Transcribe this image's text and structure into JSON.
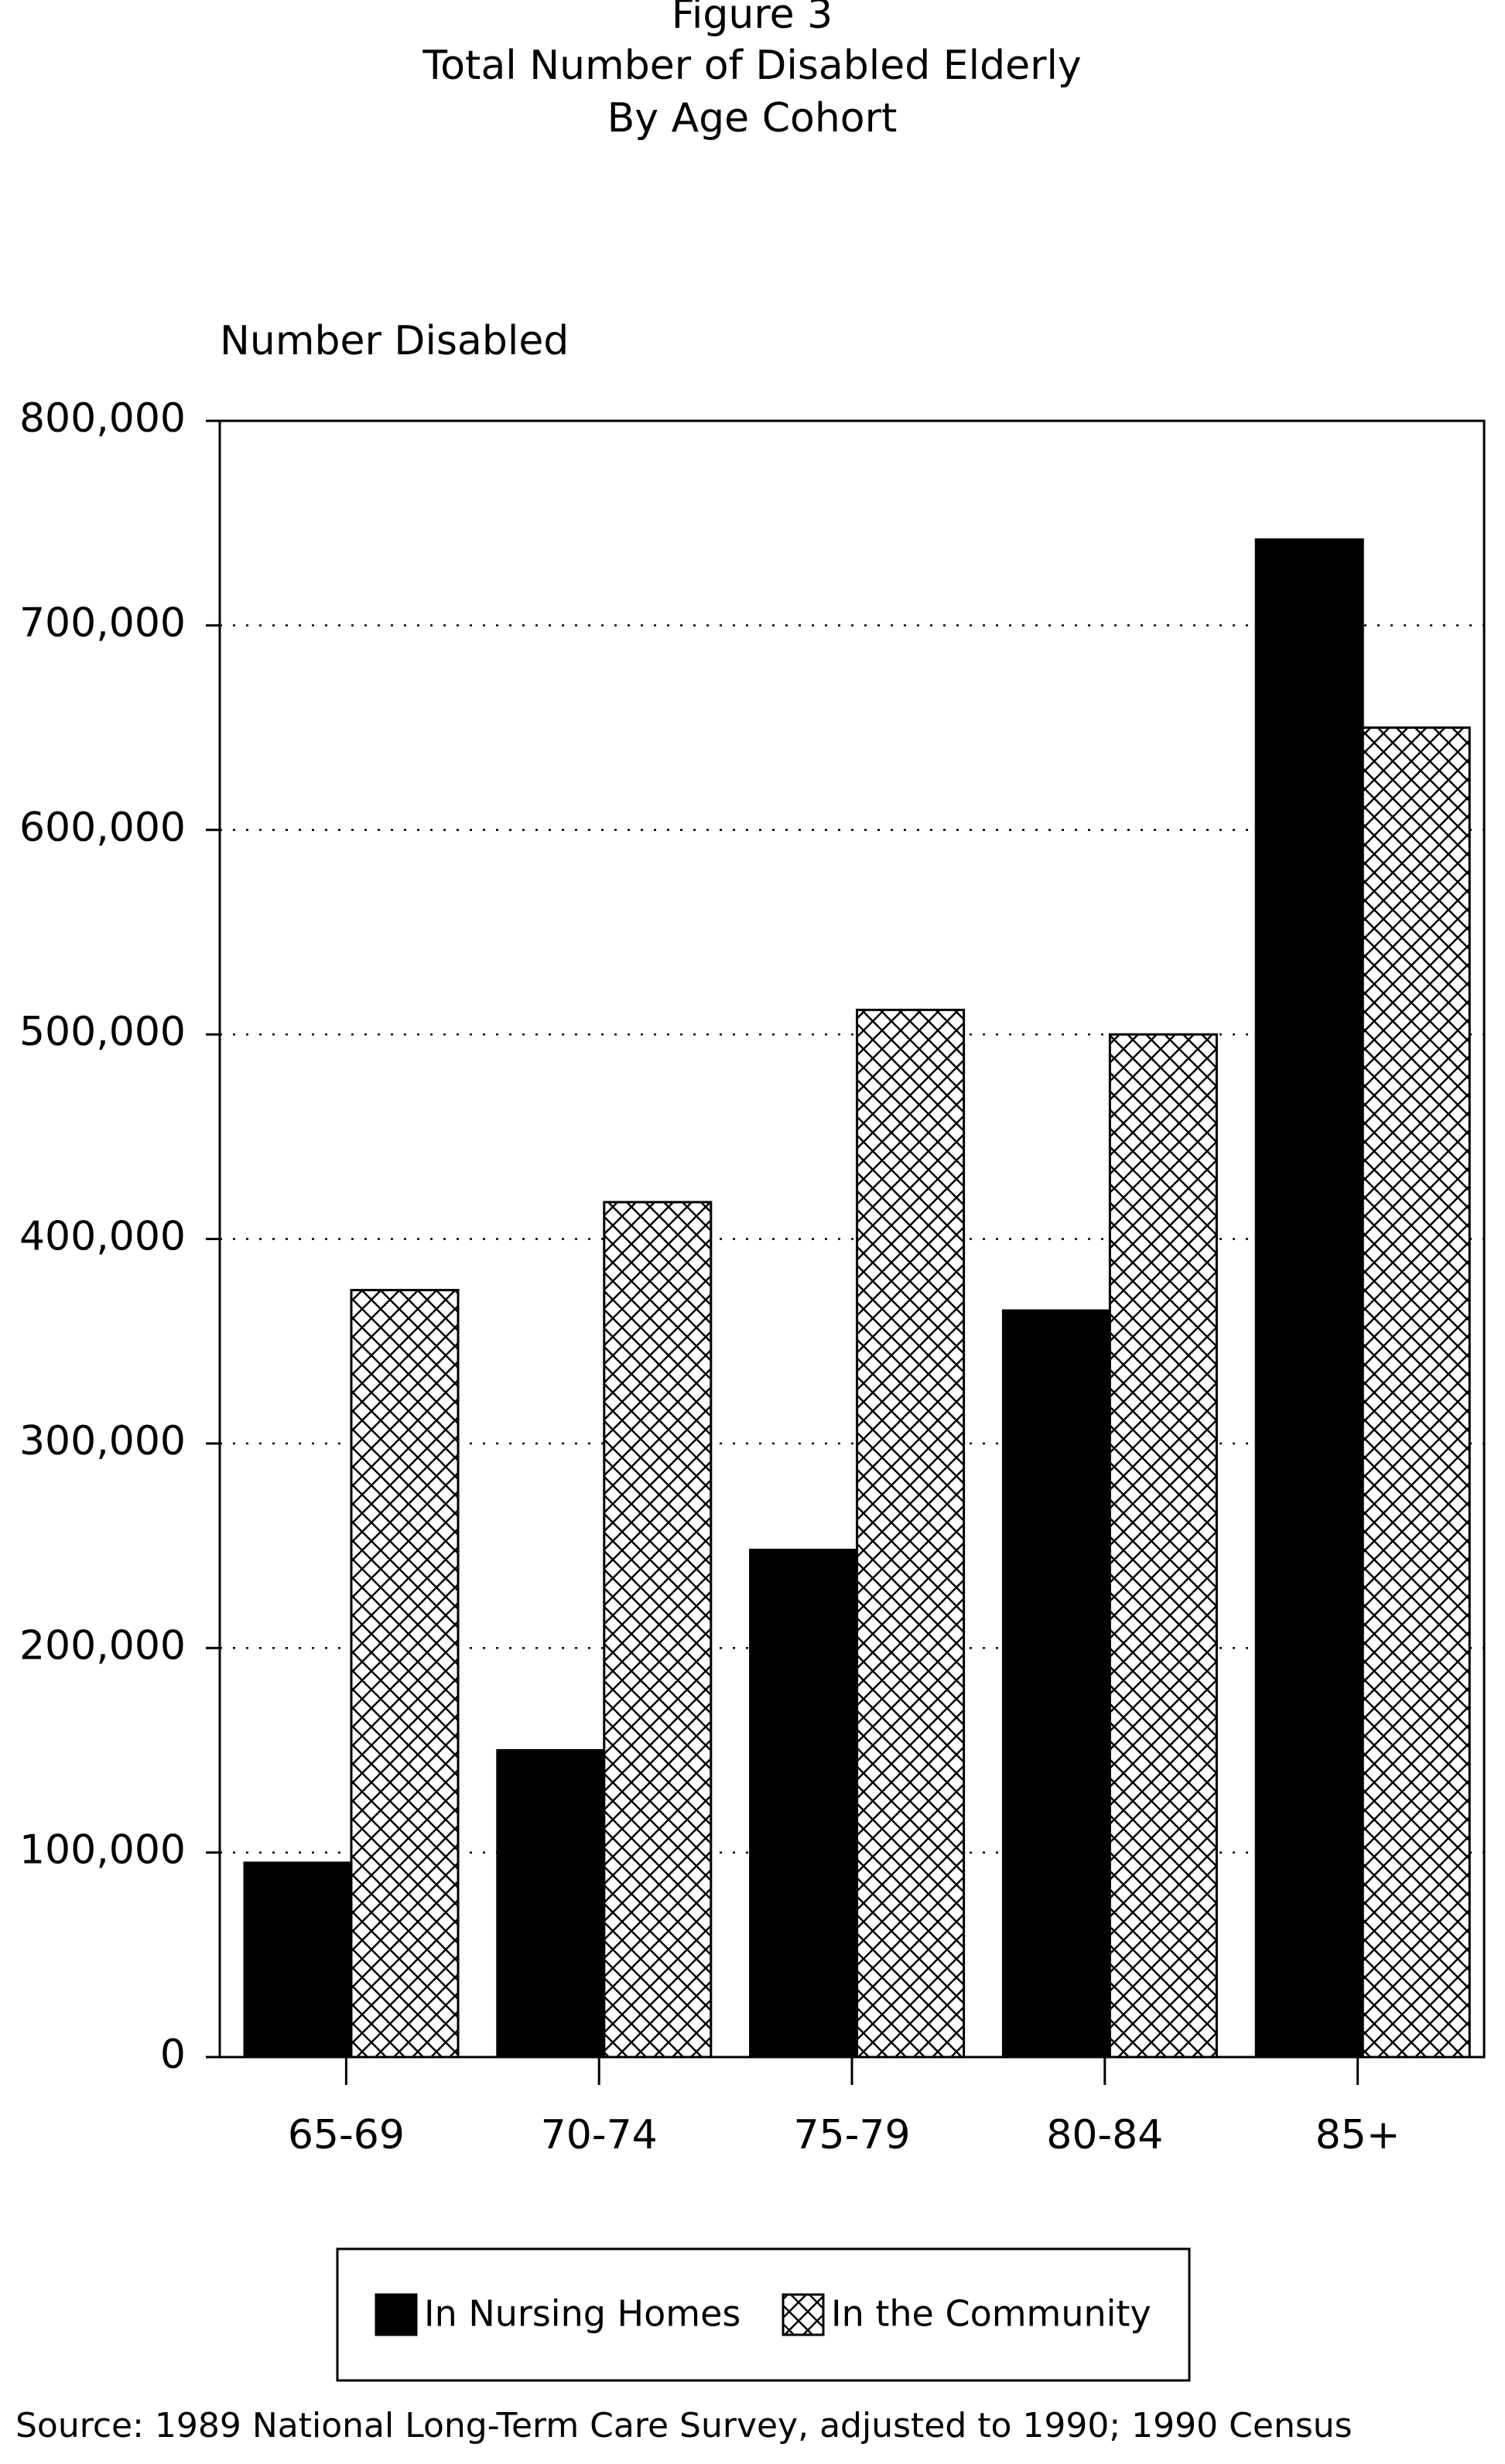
{
  "chart_data": {
    "type": "bar",
    "title": "Figure 3",
    "subtitle": [
      "Total Number of Disabled Elderly",
      "By Age Cohort"
    ],
    "y_label": "Number Disabled",
    "categories": [
      "65-69",
      "70-74",
      "75-79",
      "80-84",
      "85+"
    ],
    "series": [
      {
        "name": "In Nursing Homes",
        "color": "#000000",
        "values": [
          95000,
          150000,
          248000,
          365000,
          742000
        ]
      },
      {
        "name": "In the Community",
        "color": "#000000",
        "hatch": "crosshatch",
        "values": [
          375000,
          418000,
          512000,
          500000,
          650000
        ]
      }
    ],
    "ylim": [
      0,
      800000
    ],
    "yticks": [
      0,
      {
        "value": 100000,
        "label": "100,000"
      },
      {
        "value": 200000,
        "label": "200,000"
      },
      {
        "value": 300000,
        "label": "300,000"
      },
      {
        "value": 400000,
        "label": "400,000"
      },
      {
        "value": 500000,
        "label": "500,000"
      },
      {
        "value": 600000,
        "label": "600,000"
      },
      {
        "value": 700000,
        "label": "700,000"
      },
      {
        "value": 800000,
        "label": "800,000"
      }
    ],
    "grid": true,
    "legend": "bottom",
    "source": "Source:  1989 National Long-Term Care Survey, adjusted to 1990; 1990 Census"
  }
}
